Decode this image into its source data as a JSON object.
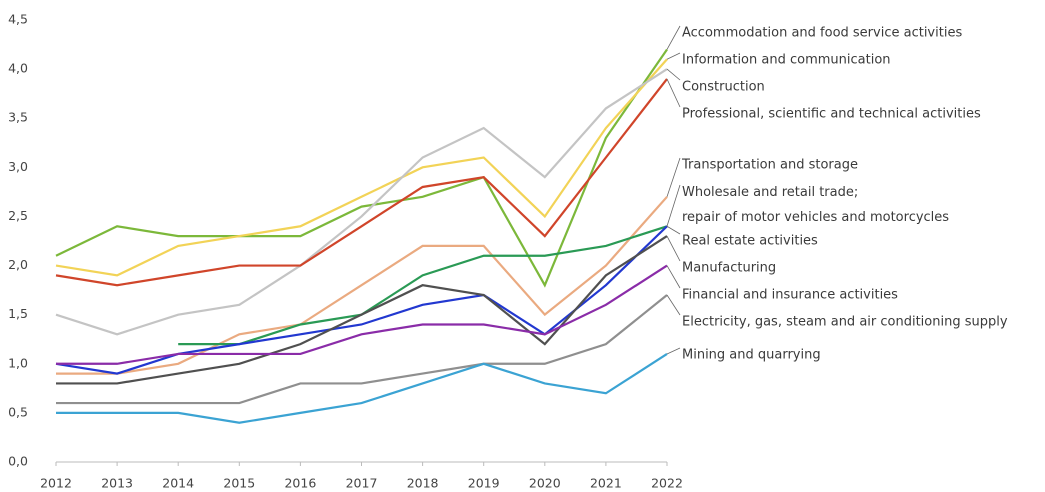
{
  "chart_data": {
    "type": "line",
    "x": [
      "2012",
      "2013",
      "2014",
      "2015",
      "2016",
      "2017",
      "2018",
      "2019",
      "2020",
      "2021",
      "2022"
    ],
    "ylim": [
      0,
      4.5
    ],
    "yticks": [
      {
        "value": 0,
        "label": "0,0"
      },
      {
        "value": 0.5,
        "label": "0,5"
      },
      {
        "value": 1,
        "label": "1,0"
      },
      {
        "value": 1.5,
        "label": "1,5"
      },
      {
        "value": 2,
        "label": "2,0"
      },
      {
        "value": 2.5,
        "label": "2,5"
      },
      {
        "value": 3,
        "label": "3,0"
      },
      {
        "value": 3.5,
        "label": "3,5"
      },
      {
        "value": 4,
        "label": "4,0"
      },
      {
        "value": 4.5,
        "label": "4,5"
      }
    ],
    "grid": false,
    "series": [
      {
        "name": "Accommodation and food service activities",
        "color": "#7cb83a",
        "values": [
          2.1,
          2.4,
          2.3,
          2.3,
          2.3,
          2.6,
          2.7,
          2.9,
          1.8,
          3.3,
          4.2
        ]
      },
      {
        "name": "Information and communication",
        "color": "#f2d357",
        "values": [
          2.0,
          1.9,
          2.2,
          2.3,
          2.4,
          2.7,
          3.0,
          3.1,
          2.5,
          3.4,
          4.1
        ]
      },
      {
        "name": "Construction",
        "color": "#c4c4c4",
        "values": [
          1.5,
          1.3,
          1.5,
          1.6,
          2.0,
          2.5,
          3.1,
          3.4,
          2.9,
          3.6,
          4.0
        ]
      },
      {
        "name": "Professional, scientific and technical activities",
        "color": "#d0452a",
        "values": [
          1.9,
          1.8,
          1.9,
          2.0,
          2.0,
          2.4,
          2.8,
          2.9,
          2.3,
          3.1,
          3.9
        ]
      },
      {
        "name": "Transportation and storage",
        "color": "#eaaa80",
        "values": [
          0.9,
          0.9,
          1.0,
          1.3,
          1.4,
          1.8,
          2.2,
          2.2,
          1.5,
          2.0,
          2.7
        ]
      },
      {
        "name": "Wholesale and retail trade;\nrepair of motor vehicles and motorcycles",
        "color": "#2a9a55",
        "values": [
          null,
          null,
          1.2,
          1.2,
          1.4,
          1.5,
          1.9,
          2.1,
          2.1,
          2.2,
          2.4
        ]
      },
      {
        "name": "Real estate activities",
        "color": "#2238d0",
        "values": [
          1.0,
          0.9,
          1.1,
          1.2,
          1.3,
          1.4,
          1.6,
          1.7,
          1.3,
          1.8,
          2.4
        ]
      },
      {
        "name": "Manufacturing",
        "color": "#505050",
        "values": [
          0.8,
          0.8,
          0.9,
          1.0,
          1.2,
          1.5,
          1.8,
          1.7,
          1.2,
          1.9,
          2.3
        ]
      },
      {
        "name": "Financial and insurance activities",
        "color": "#8a2ca8",
        "values": [
          1.0,
          1.0,
          1.1,
          1.1,
          1.1,
          1.3,
          1.4,
          1.4,
          1.3,
          1.6,
          2.0
        ]
      },
      {
        "name": "Electricity, gas, steam and air conditioning supply",
        "color": "#8f8f8f",
        "values": [
          0.6,
          0.6,
          0.6,
          0.6,
          0.8,
          0.8,
          0.9,
          1.0,
          1.0,
          1.2,
          1.7
        ]
      },
      {
        "name": "Mining and quarrying",
        "color": "#3ba3d3",
        "values": [
          0.5,
          0.5,
          0.5,
          0.4,
          0.5,
          0.6,
          0.8,
          1.0,
          0.8,
          0.7,
          1.1
        ]
      }
    ]
  }
}
